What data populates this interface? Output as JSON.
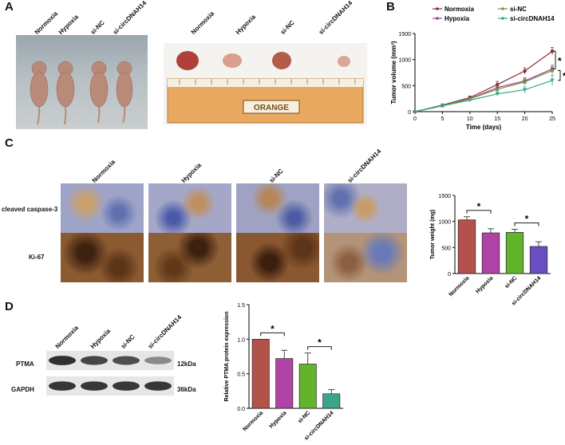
{
  "panels": {
    "A": {
      "letter": "A",
      "mice_labels": [
        "Normoxia",
        "Hypoxia",
        "si-NC",
        "si-circDNAH14"
      ],
      "tumor_labels": [
        "Normoxia",
        "Hypoxia",
        "si-NC",
        "si-circDNAH14"
      ],
      "ruler_text": "ORANGE"
    },
    "B": {
      "letter": "B"
    },
    "C": {
      "letter": "C",
      "column_labels": [
        "Normoxia",
        "Hypoxia",
        "si-NC",
        "si-circDNAH14"
      ],
      "row_labels": [
        "cleaved caspase-3",
        "Ki-67"
      ]
    },
    "D": {
      "letter": "D",
      "blot_labels": [
        "Normoxia",
        "Hypoxia",
        "si-NC",
        "si-circDNAH14"
      ],
      "proteins": [
        {
          "name": "PTMA",
          "size": "12kDa",
          "intensities": [
            0.95,
            0.8,
            0.75,
            0.35
          ]
        },
        {
          "name": "GAPDH",
          "size": "36kDa",
          "intensities": [
            0.9,
            0.9,
            0.9,
            0.9
          ]
        }
      ]
    }
  },
  "chart_data": [
    {
      "id": "tumor-volume",
      "type": "line",
      "xlabel": "Time (days)",
      "ylabel": "Tumor volume (mm³)",
      "x": [
        0,
        5,
        10,
        15,
        20,
        25
      ],
      "xticks": [
        0,
        5,
        10,
        15,
        20,
        25
      ],
      "yticks": [
        0,
        500,
        1000,
        1500
      ],
      "xlim": [
        0,
        25
      ],
      "ylim": [
        0,
        1500
      ],
      "series": [
        {
          "name": "Normoxia",
          "color": "#8b2d2d",
          "marker": "circle",
          "values": [
            0,
            125,
            270,
            520,
            780,
            1160
          ],
          "errors": [
            0,
            15,
            30,
            60,
            60,
            70
          ]
        },
        {
          "name": "Hypoxia",
          "color": "#a03c9a",
          "marker": "square",
          "values": [
            0,
            115,
            250,
            460,
            590,
            820
          ],
          "errors": [
            0,
            15,
            25,
            50,
            60,
            70
          ]
        },
        {
          "name": "si-NC",
          "color": "#6f9a3a",
          "marker": "triangle",
          "values": [
            0,
            115,
            245,
            430,
            570,
            790
          ],
          "errors": [
            0,
            15,
            25,
            50,
            60,
            70
          ]
        },
        {
          "name": "si-circDNAH14",
          "color": "#3aa58c",
          "marker": "triangle-down",
          "values": [
            0,
            110,
            220,
            340,
            420,
            600
          ],
          "errors": [
            0,
            15,
            25,
            40,
            60,
            100
          ]
        }
      ],
      "significance": [
        {
          "label": "*",
          "from": "Normoxia",
          "to": "Hypoxia"
        },
        {
          "label": "*",
          "from": "si-NC",
          "to": "si-circDNAH14"
        }
      ],
      "legend": "top-left"
    },
    {
      "id": "tumor-weight",
      "type": "bar",
      "ylabel": "Tumor weight (mg)",
      "categories": [
        "Normoxia",
        "Hypoxia",
        "si-NC",
        "si-circDNAH14"
      ],
      "values": [
        1030,
        780,
        790,
        520
      ],
      "errors": [
        60,
        80,
        60,
        90
      ],
      "colors": [
        "#b3524a",
        "#b043a6",
        "#62b52a",
        "#6a4fc4"
      ],
      "yticks": [
        0,
        500,
        1000,
        1500
      ],
      "ylim": [
        0,
        1500
      ],
      "significance": [
        {
          "label": "*",
          "from": 0,
          "to": 1
        },
        {
          "label": "*",
          "from": 2,
          "to": 3
        }
      ]
    },
    {
      "id": "ptma-expression",
      "type": "bar",
      "ylabel": "Relative PTMA protein expression",
      "categories": [
        "Normoxia",
        "Hypoxia",
        "si-NC",
        "si-circDNAH14"
      ],
      "values": [
        1.0,
        0.72,
        0.64,
        0.21
      ],
      "errors": [
        0,
        0.12,
        0.16,
        0.06
      ],
      "colors": [
        "#b3524a",
        "#b043a6",
        "#62b52a",
        "#3aa58c"
      ],
      "yticks": [
        0.0,
        0.5,
        1.0,
        1.5
      ],
      "ylim": [
        0,
        1.5
      ],
      "significance": [
        {
          "label": "*",
          "from": 0,
          "to": 1
        },
        {
          "label": "*",
          "from": 2,
          "to": 3
        }
      ]
    }
  ]
}
